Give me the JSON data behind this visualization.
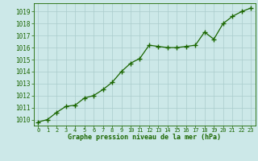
{
  "x": [
    0,
    1,
    2,
    3,
    4,
    5,
    6,
    7,
    8,
    9,
    10,
    11,
    12,
    13,
    14,
    15,
    16,
    17,
    18,
    19,
    20,
    21,
    22,
    23
  ],
  "y": [
    1009.8,
    1010.0,
    1010.6,
    1011.1,
    1011.2,
    1011.8,
    1012.0,
    1012.5,
    1013.1,
    1014.0,
    1014.7,
    1015.1,
    1016.2,
    1016.1,
    1016.0,
    1016.0,
    1016.1,
    1016.2,
    1017.3,
    1016.7,
    1018.0,
    1018.6,
    1019.0,
    1019.3
  ],
  "line_color": "#1a6600",
  "marker": "+",
  "marker_size": 4,
  "marker_color": "#1a6600",
  "bg_color": "#cce8e8",
  "grid_color": "#aacccc",
  "xlabel": "Graphe pression niveau de la mer (hPa)",
  "xlabel_color": "#1a6600",
  "tick_color": "#1a6600",
  "ylim": [
    1009.5,
    1019.7
  ],
  "yticks": [
    1010,
    1011,
    1012,
    1013,
    1014,
    1015,
    1016,
    1017,
    1018,
    1019
  ],
  "xticks": [
    0,
    1,
    2,
    3,
    4,
    5,
    6,
    7,
    8,
    9,
    10,
    11,
    12,
    13,
    14,
    15,
    16,
    17,
    18,
    19,
    20,
    21,
    22,
    23
  ],
  "linewidth": 0.9
}
